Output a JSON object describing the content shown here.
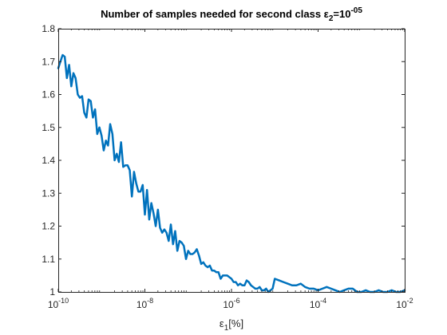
{
  "chart_data": {
    "type": "line",
    "title": {
      "prefix": "Number of samples needed for second class ε",
      "sub": "2",
      "mid": "=10",
      "sup": "-05"
    },
    "xlabel": {
      "prefix": "ε",
      "sub": "1",
      "suffix": "[%]"
    },
    "ylabel": "",
    "x_scale": "log",
    "xlim": [
      1e-10,
      0.01
    ],
    "ylim": [
      1,
      1.8
    ],
    "grid": false,
    "x_ticks": [
      {
        "value": 1e-10,
        "base": "10",
        "exp": "-10"
      },
      {
        "value": 1e-08,
        "base": "10",
        "exp": "-8"
      },
      {
        "value": 1e-06,
        "base": "10",
        "exp": "-6"
      },
      {
        "value": 0.0001,
        "base": "10",
        "exp": "-4"
      },
      {
        "value": 0.01,
        "base": "10",
        "exp": "-2"
      }
    ],
    "y_ticks": [
      {
        "value": 1.0,
        "label": "1"
      },
      {
        "value": 1.1,
        "label": "1.1"
      },
      {
        "value": 1.2,
        "label": "1.2"
      },
      {
        "value": 1.3,
        "label": "1.3"
      },
      {
        "value": 1.4,
        "label": "1.4"
      },
      {
        "value": 1.5,
        "label": "1.5"
      },
      {
        "value": 1.6,
        "label": "1.6"
      },
      {
        "value": 1.7,
        "label": "1.7"
      },
      {
        "value": 1.8,
        "label": "1.8"
      }
    ],
    "series": [
      {
        "color": "#0072BD",
        "x": [
          1e-10,
          1.12e-10,
          1.26e-10,
          1.41e-10,
          1.58e-10,
          1.78e-10,
          2e-10,
          2.24e-10,
          2.51e-10,
          2.82e-10,
          3.16e-10,
          3.55e-10,
          3.98e-10,
          4.47e-10,
          5.01e-10,
          5.62e-10,
          6.31e-10,
          7.08e-10,
          7.94e-10,
          8.91e-10,
          1e-09,
          1.12e-09,
          1.26e-09,
          1.41e-09,
          1.58e-09,
          1.78e-09,
          2e-09,
          2.24e-09,
          2.51e-09,
          2.82e-09,
          3.16e-09,
          3.55e-09,
          3.98e-09,
          4.47e-09,
          5.01e-09,
          5.62e-09,
          6.31e-09,
          7.08e-09,
          7.94e-09,
          8.91e-09,
          1e-08,
          1.12e-08,
          1.26e-08,
          1.41e-08,
          1.58e-08,
          1.78e-08,
          2e-08,
          2.24e-08,
          2.51e-08,
          2.82e-08,
          3.16e-08,
          3.55e-08,
          3.98e-08,
          4.47e-08,
          5.01e-08,
          5.62e-08,
          6.31e-08,
          7.08e-08,
          7.94e-08,
          8.91e-08,
          1e-07,
          1.12e-07,
          1.26e-07,
          1.41e-07,
          1.58e-07,
          1.78e-07,
          2e-07,
          2.24e-07,
          2.51e-07,
          2.82e-07,
          3.16e-07,
          3.55e-07,
          3.98e-07,
          4.47e-07,
          5.01e-07,
          5.62e-07,
          6.31e-07,
          7.08e-07,
          7.94e-07,
          8.91e-07,
          1e-06,
          1.12e-06,
          1.26e-06,
          1.41e-06,
          1.58e-06,
          1.78e-06,
          2e-06,
          2.24e-06,
          2.51e-06,
          2.82e-06,
          3.16e-06,
          3.55e-06,
          3.98e-06,
          4.47e-06,
          5.01e-06,
          5.62e-06,
          6.31e-06,
          7.08e-06,
          7.94e-06,
          8.91e-06,
          1e-05,
          1.26e-05,
          1.58e-05,
          2e-05,
          2.51e-05,
          3.16e-05,
          3.98e-05,
          5.01e-05,
          6.31e-05,
          7.94e-05,
          0.0001,
          0.000126,
          0.000158,
          0.0002,
          0.000251,
          0.000316,
          0.000398,
          0.000501,
          0.000631,
          0.000794,
          0.001,
          0.00126,
          0.00158,
          0.002,
          0.00251,
          0.00316,
          0.00398,
          0.00501,
          0.00631,
          0.00794,
          0.01
        ],
        "values": [
          1.68,
          1.7,
          1.72,
          1.715,
          1.65,
          1.69,
          1.625,
          1.665,
          1.65,
          1.6,
          1.59,
          1.595,
          1.545,
          1.53,
          1.585,
          1.58,
          1.53,
          1.555,
          1.48,
          1.5,
          1.475,
          1.43,
          1.46,
          1.445,
          1.51,
          1.48,
          1.4,
          1.42,
          1.395,
          1.455,
          1.38,
          1.385,
          1.385,
          1.37,
          1.29,
          1.365,
          1.33,
          1.305,
          1.305,
          1.325,
          1.235,
          1.31,
          1.22,
          1.27,
          1.24,
          1.2,
          1.25,
          1.195,
          1.18,
          1.19,
          1.18,
          1.155,
          1.205,
          1.145,
          1.185,
          1.125,
          1.155,
          1.15,
          1.14,
          1.1,
          1.125,
          1.115,
          1.115,
          1.12,
          1.13,
          1.11,
          1.085,
          1.09,
          1.08,
          1.075,
          1.08,
          1.065,
          1.065,
          1.06,
          1.06,
          1.04,
          1.05,
          1.05,
          1.05,
          1.045,
          1.04,
          1.03,
          1.03,
          1.02,
          1.025,
          1.02,
          1.02,
          1.035,
          1.03,
          1.02,
          1.015,
          1.01,
          1.01,
          1.015,
          1.005,
          1.005,
          1.01,
          1.0,
          1.005,
          1.01,
          1.04,
          1.035,
          1.03,
          1.025,
          1.02,
          1.02,
          1.025,
          1.015,
          1.01,
          1.01,
          1.005,
          1.01,
          1.015,
          1.01,
          1.005,
          1.0,
          1.005,
          1.01,
          1.01,
          1.0,
          1.0,
          1.005,
          1.0,
          1.0,
          1.005,
          1.0,
          1.0,
          1.005,
          1.0,
          1.0,
          1.005
        ]
      }
    ]
  }
}
